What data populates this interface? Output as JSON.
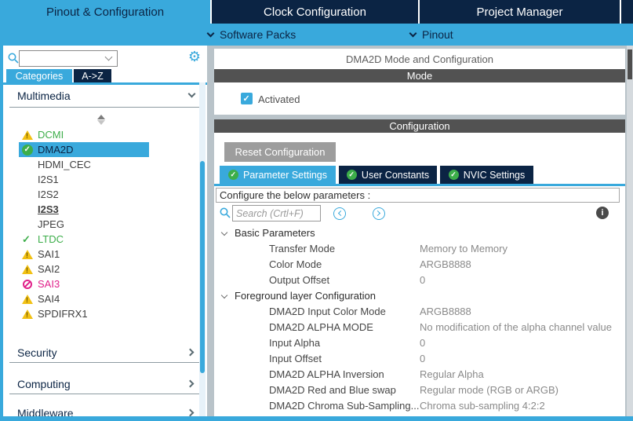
{
  "header": {
    "tabs": [
      {
        "label": "Pinout & Configuration",
        "active": true
      },
      {
        "label": "Clock Configuration",
        "active": false
      },
      {
        "label": "Project Manager",
        "active": false
      }
    ],
    "subnav": [
      {
        "label": "Software Packs"
      },
      {
        "label": "Pinout"
      }
    ]
  },
  "sidebar": {
    "search_value": "",
    "tabs": [
      {
        "label": "Categories",
        "active": true
      },
      {
        "label": "A->Z",
        "active": false
      }
    ],
    "category_label": "Multimedia",
    "items": [
      {
        "label": "DCMI",
        "icon": "warning",
        "color": "green"
      },
      {
        "label": "DMA2D",
        "icon": "check-circle",
        "selected": true
      },
      {
        "label": "HDMI_CEC"
      },
      {
        "label": "I2S1"
      },
      {
        "label": "I2S2"
      },
      {
        "label": "I2S3",
        "style": "bold-underline"
      },
      {
        "label": "JPEG"
      },
      {
        "label": "LTDC",
        "icon": "check",
        "color": "green"
      },
      {
        "label": "SAI1",
        "icon": "warning"
      },
      {
        "label": "SAI2",
        "icon": "warning"
      },
      {
        "label": "SAI3",
        "icon": "blocked",
        "color": "magenta"
      },
      {
        "label": "SAI4",
        "icon": "warning"
      },
      {
        "label": "SPDIFRX1",
        "icon": "warning"
      }
    ],
    "bottom_sections": [
      {
        "label": "Security"
      },
      {
        "label": "Computing"
      },
      {
        "label": "Middleware"
      }
    ]
  },
  "main": {
    "title": "DMA2D Mode and Configuration",
    "mode": {
      "header": "Mode",
      "checkbox_label": "Activated",
      "checked": true
    },
    "config": {
      "header": "Configuration",
      "reset_button": "Reset Configuration",
      "tabs": [
        {
          "label": "Parameter Settings",
          "active": true
        },
        {
          "label": "User Constants",
          "active": false
        },
        {
          "label": "NVIC Settings",
          "active": false
        }
      ],
      "hint": "Configure the below parameters :",
      "search_placeholder": "Search (Crtl+F)",
      "groups": [
        {
          "name": "Basic Parameters",
          "params": [
            {
              "label": "Transfer Mode",
              "value": "Memory to Memory"
            },
            {
              "label": "Color Mode",
              "value": "ARGB8888"
            },
            {
              "label": "Output Offset",
              "value": "0"
            }
          ]
        },
        {
          "name": "Foreground layer Configuration",
          "params": [
            {
              "label": "DMA2D Input Color Mode",
              "value": "ARGB8888"
            },
            {
              "label": "DMA2D ALPHA MODE",
              "value": "No modification of the alpha channel value"
            },
            {
              "label": "Input Alpha",
              "value": "0"
            },
            {
              "label": "Input Offset",
              "value": "0"
            },
            {
              "label": "DMA2D ALPHA Inversion",
              "value": "Regular Alpha"
            },
            {
              "label": "DMA2D Red and Blue swap",
              "value": "Regular mode (RGB or ARGB)"
            },
            {
              "label": "DMA2D Chroma Sub-Sampling...",
              "value": "Chroma sub-sampling 4:2:2"
            }
          ]
        }
      ]
    }
  },
  "colors": {
    "accent_blue": "#39a9dc",
    "navy": "#0b2444",
    "section_bar": "#525252",
    "green_ok": "#3dae4a",
    "warning_yellow": "#f2c114",
    "blocked_magenta": "#e0218a"
  }
}
